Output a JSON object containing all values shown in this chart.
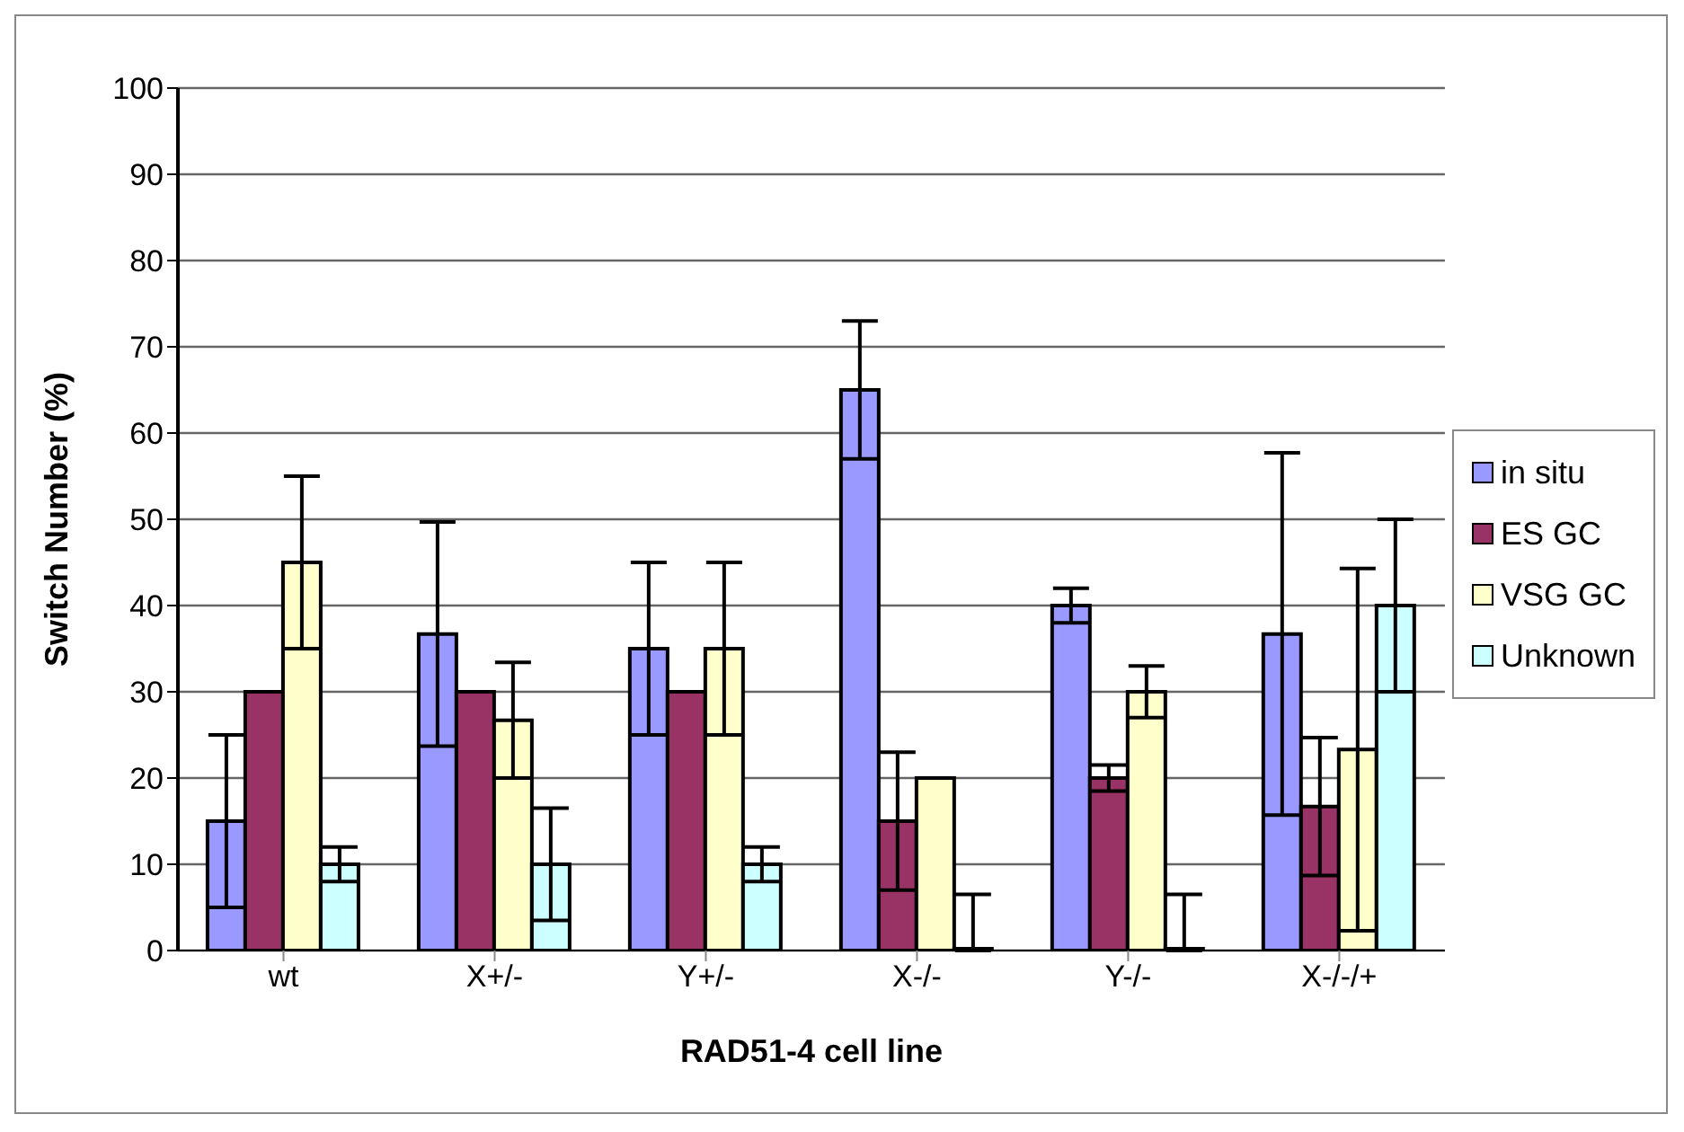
{
  "chart_data": {
    "type": "bar",
    "xlabel": "RAD51-4 cell line",
    "ylabel": "Switch Number (%)",
    "categories": [
      "wt",
      "X+/-",
      "Y+/-",
      "X-/-",
      "Y-/-",
      "X-/-/+"
    ],
    "series": [
      {
        "name": "in situ",
        "color": "#9999ff",
        "values": [
          15,
          36.7,
          35,
          65,
          40,
          36.7
        ],
        "errors": [
          10,
          13,
          10,
          8,
          2,
          21
        ]
      },
      {
        "name": "ES GC",
        "color": "#993366",
        "values": [
          30,
          30,
          30,
          15,
          20,
          16.7
        ],
        "errors": [
          null,
          null,
          null,
          8,
          1.5,
          8
        ]
      },
      {
        "name": "VSG GC",
        "color": "#ffffcc",
        "values": [
          45,
          26.7,
          35,
          20,
          30,
          23.3
        ],
        "errors": [
          10,
          6.7,
          10,
          null,
          3,
          21
        ]
      },
      {
        "name": "Unknown",
        "color": "#ccffff",
        "values": [
          10,
          10,
          10,
          0,
          0,
          40
        ],
        "errors": [
          2,
          6.5,
          2,
          [
            0,
            6.5
          ],
          [
            0,
            6.5
          ],
          10
        ]
      }
    ],
    "ylim": [
      0,
      100
    ],
    "yticks": [
      0,
      10,
      20,
      30,
      40,
      50,
      60,
      70,
      80,
      90,
      100
    ],
    "grid": "y",
    "legend": "right"
  }
}
